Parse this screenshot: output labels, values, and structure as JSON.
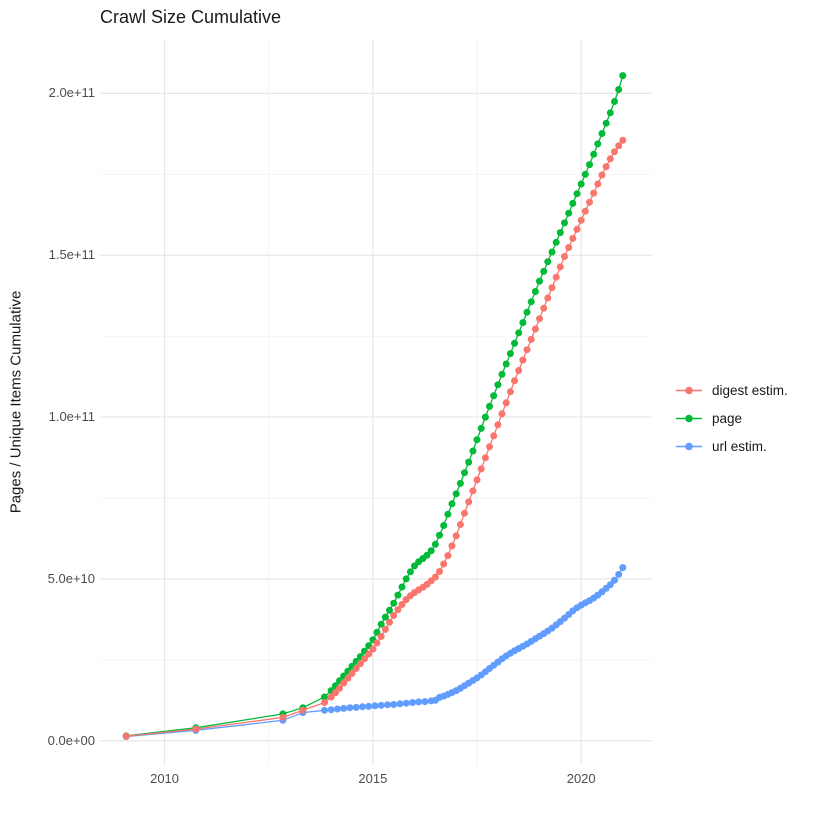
{
  "chart_data": {
    "type": "line",
    "title": "Crawl Size Cumulative",
    "xlabel": "",
    "ylabel": "Pages / Unique Items Cumulative",
    "value_unit": "1e9 pages (billions)",
    "xlim": [
      2008.45,
      2021.7
    ],
    "ylim": [
      -7.5,
      216.5
    ],
    "grid": {
      "major_color": "#e7e7e7",
      "minor_color": "#f2f2f2",
      "background": "#ffffff"
    },
    "legend_position": "right",
    "x_ticks": [
      {
        "label": "2010",
        "value": 2010
      },
      {
        "label": "2015",
        "value": 2015
      },
      {
        "label": "2020",
        "value": 2020
      }
    ],
    "y_ticks": [
      {
        "label": "0.0e+00",
        "value": 0
      },
      {
        "label": "5.0e+10",
        "value": 50
      },
      {
        "label": "1.0e+11",
        "value": 100
      },
      {
        "label": "1.5e+11",
        "value": 150
      },
      {
        "label": "2.0e+11",
        "value": 200
      }
    ],
    "x_minor_gridlines": [
      2012.5,
      2017.5
    ],
    "y_minor_gridlines": [
      25,
      75,
      125,
      175
    ],
    "draw_order": [
      2,
      1,
      0
    ],
    "series": [
      {
        "id": "digest-estim",
        "name": "digest estim.",
        "color": "#F8766D",
        "points": [
          [
            2009.08,
            1.4
          ],
          [
            2010.75,
            3.6
          ],
          [
            2012.84,
            7.2
          ],
          [
            2013.32,
            9.4
          ],
          [
            2013.84,
            11.8
          ],
          [
            2014.0,
            13.5
          ],
          [
            2014.1,
            14.8
          ],
          [
            2014.2,
            16.2
          ],
          [
            2014.3,
            17.8
          ],
          [
            2014.4,
            19.3
          ],
          [
            2014.5,
            20.8
          ],
          [
            2014.6,
            22.3
          ],
          [
            2014.7,
            23.8
          ],
          [
            2014.8,
            25.3
          ],
          [
            2014.9,
            26.8
          ],
          [
            2015.0,
            28.3
          ],
          [
            2015.1,
            30.2
          ],
          [
            2015.2,
            32.2
          ],
          [
            2015.3,
            34.4
          ],
          [
            2015.4,
            36.6
          ],
          [
            2015.5,
            38.7
          ],
          [
            2015.6,
            40.5
          ],
          [
            2015.7,
            42.1
          ],
          [
            2015.8,
            43.6
          ],
          [
            2015.9,
            44.8
          ],
          [
            2016.0,
            45.8
          ],
          [
            2016.1,
            46.6
          ],
          [
            2016.2,
            47.4
          ],
          [
            2016.3,
            48.3
          ],
          [
            2016.4,
            49.4
          ],
          [
            2016.5,
            50.6
          ],
          [
            2016.6,
            52.3
          ],
          [
            2016.7,
            54.6
          ],
          [
            2016.8,
            57.2
          ],
          [
            2016.9,
            60.2
          ],
          [
            2017.0,
            63.3
          ],
          [
            2017.1,
            66.8
          ],
          [
            2017.2,
            70.3
          ],
          [
            2017.3,
            73.8
          ],
          [
            2017.4,
            77.2
          ],
          [
            2017.5,
            80.6
          ],
          [
            2017.6,
            84.0
          ],
          [
            2017.7,
            87.4
          ],
          [
            2017.8,
            90.8
          ],
          [
            2017.9,
            94.2
          ],
          [
            2018.0,
            97.6
          ],
          [
            2018.1,
            101.0
          ],
          [
            2018.2,
            104.4
          ],
          [
            2018.3,
            107.8
          ],
          [
            2018.4,
            111.2
          ],
          [
            2018.5,
            114.4
          ],
          [
            2018.6,
            117.6
          ],
          [
            2018.7,
            120.8
          ],
          [
            2018.8,
            124.0
          ],
          [
            2018.9,
            127.2
          ],
          [
            2019.0,
            130.4
          ],
          [
            2019.1,
            133.6
          ],
          [
            2019.2,
            136.8
          ],
          [
            2019.3,
            140.0
          ],
          [
            2019.4,
            143.2
          ],
          [
            2019.5,
            146.4
          ],
          [
            2019.6,
            149.6
          ],
          [
            2019.7,
            152.4
          ],
          [
            2019.8,
            155.2
          ],
          [
            2019.9,
            158.0
          ],
          [
            2020.0,
            160.8
          ],
          [
            2020.1,
            163.6
          ],
          [
            2020.2,
            166.4
          ],
          [
            2020.3,
            169.2
          ],
          [
            2020.4,
            172.0
          ],
          [
            2020.5,
            174.8
          ],
          [
            2020.6,
            177.4
          ],
          [
            2020.7,
            179.8
          ],
          [
            2020.8,
            182.0
          ],
          [
            2020.9,
            183.8
          ],
          [
            2021.0,
            185.5
          ]
        ]
      },
      {
        "id": "page",
        "name": "page",
        "color": "#00BA38",
        "points": [
          [
            2009.08,
            1.5
          ],
          [
            2010.75,
            4.0
          ],
          [
            2012.84,
            8.3
          ],
          [
            2013.32,
            10.2
          ],
          [
            2013.84,
            13.5
          ],
          [
            2014.0,
            15.5
          ],
          [
            2014.1,
            17.0
          ],
          [
            2014.2,
            18.5
          ],
          [
            2014.3,
            20.0
          ],
          [
            2014.4,
            21.5
          ],
          [
            2014.5,
            23.0
          ],
          [
            2014.6,
            24.5
          ],
          [
            2014.7,
            26.0
          ],
          [
            2014.8,
            27.7
          ],
          [
            2014.9,
            29.4
          ],
          [
            2015.0,
            31.2
          ],
          [
            2015.1,
            33.5
          ],
          [
            2015.2,
            36.0
          ],
          [
            2015.3,
            38.2
          ],
          [
            2015.4,
            40.3
          ],
          [
            2015.5,
            42.5
          ],
          [
            2015.6,
            45.0
          ],
          [
            2015.7,
            47.5
          ],
          [
            2015.8,
            50.0
          ],
          [
            2015.9,
            52.2
          ],
          [
            2016.0,
            54.0
          ],
          [
            2016.1,
            55.3
          ],
          [
            2016.2,
            56.3
          ],
          [
            2016.3,
            57.3
          ],
          [
            2016.4,
            58.7
          ],
          [
            2016.5,
            60.7
          ],
          [
            2016.6,
            63.5
          ],
          [
            2016.7,
            66.5
          ],
          [
            2016.8,
            70.0
          ],
          [
            2016.9,
            73.2
          ],
          [
            2017.0,
            76.3
          ],
          [
            2017.1,
            79.5
          ],
          [
            2017.2,
            82.8
          ],
          [
            2017.3,
            86.1
          ],
          [
            2017.4,
            89.5
          ],
          [
            2017.5,
            93.0
          ],
          [
            2017.6,
            96.5
          ],
          [
            2017.7,
            100.0
          ],
          [
            2017.8,
            103.3
          ],
          [
            2017.9,
            106.6
          ],
          [
            2018.0,
            110.0
          ],
          [
            2018.1,
            113.2
          ],
          [
            2018.2,
            116.4
          ],
          [
            2018.3,
            119.6
          ],
          [
            2018.4,
            122.8
          ],
          [
            2018.5,
            126.0
          ],
          [
            2018.6,
            129.2
          ],
          [
            2018.7,
            132.4
          ],
          [
            2018.8,
            135.6
          ],
          [
            2018.9,
            138.8
          ],
          [
            2019.0,
            142.0
          ],
          [
            2019.1,
            145.0
          ],
          [
            2019.2,
            148.0
          ],
          [
            2019.3,
            151.0
          ],
          [
            2019.4,
            154.0
          ],
          [
            2019.5,
            157.0
          ],
          [
            2019.6,
            160.0
          ],
          [
            2019.7,
            163.0
          ],
          [
            2019.8,
            166.0
          ],
          [
            2019.9,
            169.0
          ],
          [
            2020.0,
            172.0
          ],
          [
            2020.1,
            175.0
          ],
          [
            2020.2,
            178.0
          ],
          [
            2020.3,
            181.2
          ],
          [
            2020.4,
            184.4
          ],
          [
            2020.5,
            187.6
          ],
          [
            2020.6,
            190.8
          ],
          [
            2020.7,
            194.0
          ],
          [
            2020.8,
            197.5
          ],
          [
            2020.9,
            201.2
          ],
          [
            2021.0,
            205.5
          ]
        ]
      },
      {
        "id": "url-estim",
        "name": "url estim.",
        "color": "#619CFF",
        "points": [
          [
            2009.08,
            1.3
          ],
          [
            2010.75,
            3.2
          ],
          [
            2012.84,
            6.3
          ],
          [
            2013.32,
            8.7
          ],
          [
            2013.84,
            9.4
          ],
          [
            2014.0,
            9.6
          ],
          [
            2014.15,
            9.8
          ],
          [
            2014.3,
            10.0
          ],
          [
            2014.45,
            10.2
          ],
          [
            2014.6,
            10.3
          ],
          [
            2014.75,
            10.5
          ],
          [
            2014.9,
            10.6
          ],
          [
            2015.05,
            10.8
          ],
          [
            2015.2,
            10.9
          ],
          [
            2015.35,
            11.1
          ],
          [
            2015.5,
            11.2
          ],
          [
            2015.65,
            11.4
          ],
          [
            2015.8,
            11.6
          ],
          [
            2015.95,
            11.8
          ],
          [
            2016.1,
            12.0
          ],
          [
            2016.25,
            12.1
          ],
          [
            2016.4,
            12.3
          ],
          [
            2016.5,
            12.5
          ],
          [
            2016.6,
            13.4
          ],
          [
            2016.7,
            13.8
          ],
          [
            2016.8,
            14.3
          ],
          [
            2016.9,
            14.9
          ],
          [
            2017.0,
            15.5
          ],
          [
            2017.1,
            16.2
          ],
          [
            2017.2,
            17.0
          ],
          [
            2017.3,
            17.8
          ],
          [
            2017.4,
            18.6
          ],
          [
            2017.5,
            19.4
          ],
          [
            2017.6,
            20.3
          ],
          [
            2017.7,
            21.3
          ],
          [
            2017.8,
            22.3
          ],
          [
            2017.9,
            23.3
          ],
          [
            2018.0,
            24.3
          ],
          [
            2018.1,
            25.3
          ],
          [
            2018.2,
            26.2
          ],
          [
            2018.3,
            27.0
          ],
          [
            2018.4,
            27.8
          ],
          [
            2018.5,
            28.5
          ],
          [
            2018.6,
            29.2
          ],
          [
            2018.7,
            29.9
          ],
          [
            2018.8,
            30.7
          ],
          [
            2018.9,
            31.5
          ],
          [
            2019.0,
            32.3
          ],
          [
            2019.1,
            33.1
          ],
          [
            2019.2,
            33.9
          ],
          [
            2019.3,
            34.8
          ],
          [
            2019.4,
            35.8
          ],
          [
            2019.5,
            36.8
          ],
          [
            2019.6,
            37.9
          ],
          [
            2019.7,
            39.0
          ],
          [
            2019.8,
            40.1
          ],
          [
            2019.9,
            41.1
          ],
          [
            2020.0,
            41.9
          ],
          [
            2020.1,
            42.6
          ],
          [
            2020.2,
            43.3
          ],
          [
            2020.3,
            44.1
          ],
          [
            2020.4,
            45.0
          ],
          [
            2020.5,
            46.0
          ],
          [
            2020.6,
            47.1
          ],
          [
            2020.7,
            48.2
          ],
          [
            2020.8,
            49.6
          ],
          [
            2020.9,
            51.4
          ],
          [
            2021.0,
            53.5
          ]
        ]
      }
    ]
  }
}
